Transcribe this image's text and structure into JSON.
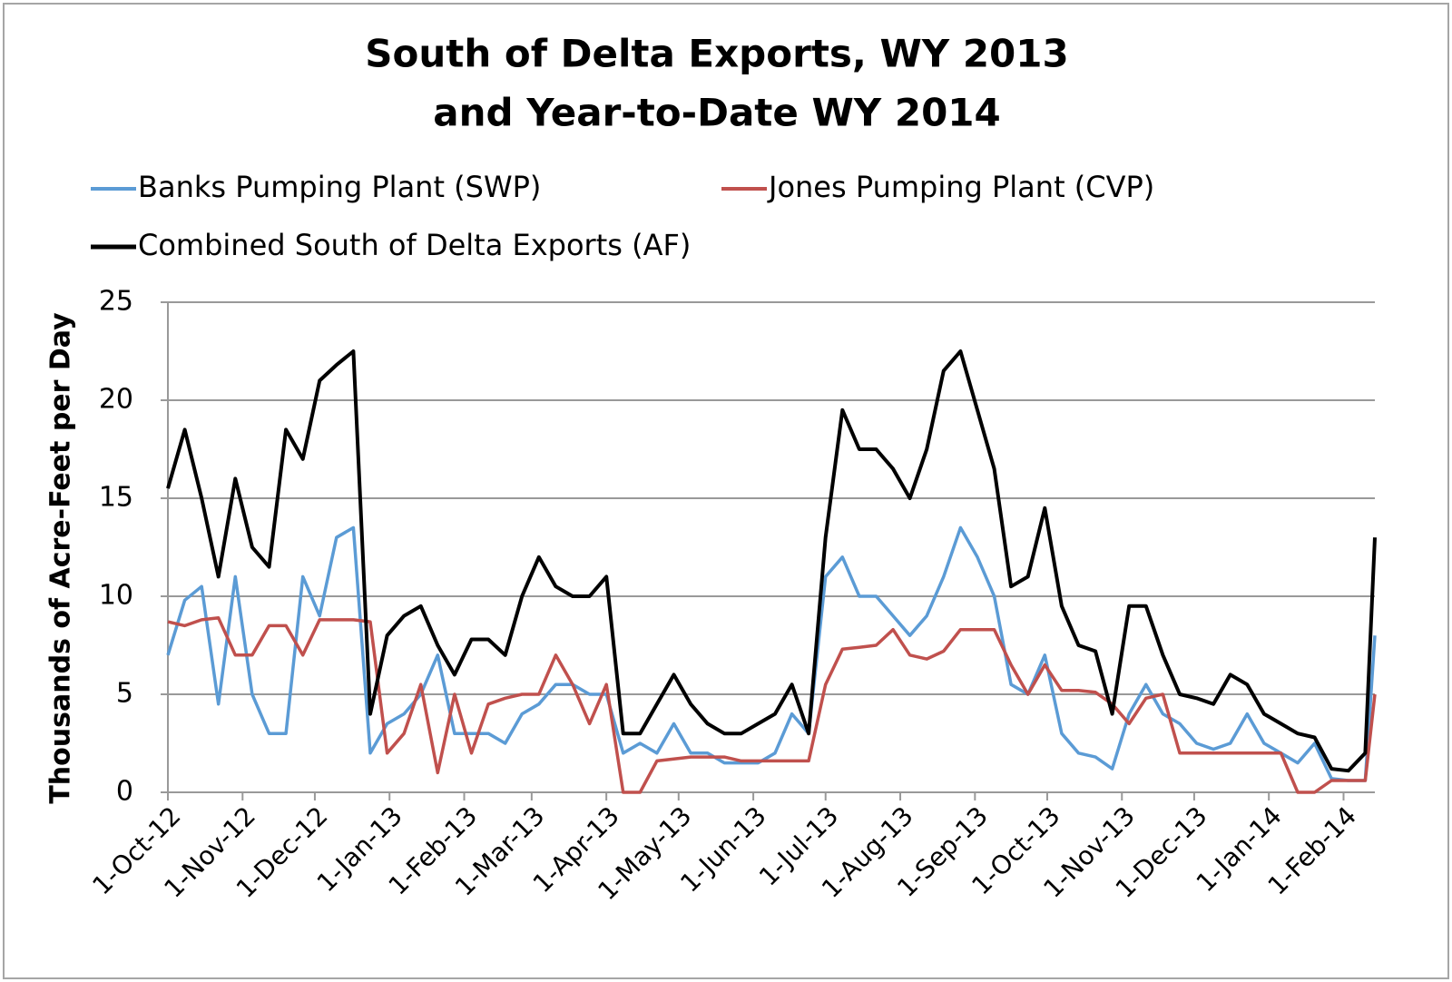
{
  "chart_data": {
    "type": "line",
    "title": [
      "South of Delta Exports, WY 2013",
      "and Year-to-Date WY 2014"
    ],
    "ylabel": "Thousands of Acre-Feet per Day",
    "x": [
      "2012-10-01",
      "2012-10-08",
      "2012-10-15",
      "2012-10-22",
      "2012-10-29",
      "2012-11-05",
      "2012-11-12",
      "2012-11-19",
      "2012-11-26",
      "2012-12-03",
      "2012-12-10",
      "2012-12-17",
      "2012-12-24",
      "2012-12-31",
      "2013-01-07",
      "2013-01-14",
      "2013-01-21",
      "2013-01-28",
      "2013-02-04",
      "2013-02-11",
      "2013-02-18",
      "2013-02-25",
      "2013-03-04",
      "2013-03-11",
      "2013-03-18",
      "2013-03-25",
      "2013-04-01",
      "2013-04-08",
      "2013-04-15",
      "2013-04-22",
      "2013-04-29",
      "2013-05-06",
      "2013-05-13",
      "2013-05-20",
      "2013-05-27",
      "2013-06-03",
      "2013-06-10",
      "2013-06-17",
      "2013-06-24",
      "2013-07-01",
      "2013-07-08",
      "2013-07-15",
      "2013-07-22",
      "2013-07-29",
      "2013-08-05",
      "2013-08-12",
      "2013-08-19",
      "2013-08-26",
      "2013-09-02",
      "2013-09-09",
      "2013-09-16",
      "2013-09-23",
      "2013-09-30",
      "2013-10-07",
      "2013-10-14",
      "2013-10-21",
      "2013-10-28",
      "2013-11-04",
      "2013-11-11",
      "2013-11-18",
      "2013-11-25",
      "2013-12-02",
      "2013-12-09",
      "2013-12-16",
      "2013-12-23",
      "2013-12-30",
      "2014-01-06",
      "2014-01-13",
      "2014-01-20",
      "2014-01-27",
      "2014-02-03",
      "2014-02-10",
      "2014-02-14"
    ],
    "series": [
      {
        "name": "Banks Pumping Plant (SWP)",
        "color": "#5b9bd5",
        "values": [
          7,
          9.8,
          10.5,
          4.5,
          11,
          5,
          3,
          3,
          11,
          9,
          13,
          13.5,
          2,
          3.5,
          4,
          5,
          7,
          3,
          3,
          3,
          2.5,
          4,
          4.5,
          5.5,
          5.5,
          5,
          5,
          2,
          2.5,
          2,
          3.5,
          2,
          2,
          1.5,
          1.5,
          1.5,
          2,
          4,
          3,
          11,
          12,
          10,
          10,
          9,
          8,
          9,
          11,
          13.5,
          12,
          10,
          5.5,
          5,
          7,
          3,
          2,
          1.8,
          1.2,
          4,
          5.5,
          4,
          3.5,
          2.5,
          2.2,
          2.5,
          4,
          2.5,
          2,
          1.5,
          2.5,
          0.7,
          0.6,
          0.6,
          8
        ]
      },
      {
        "name": "Jones Pumping Plant (CVP)",
        "color": "#c0504d",
        "values": [
          8.7,
          8.5,
          8.8,
          8.9,
          7,
          7,
          8.5,
          8.5,
          7,
          8.8,
          8.8,
          8.8,
          8.7,
          2,
          3,
          5.5,
          1,
          5,
          2,
          4.5,
          4.8,
          5,
          5,
          7,
          5.5,
          3.5,
          5.5,
          0,
          0,
          1.6,
          1.7,
          1.8,
          1.8,
          1.8,
          1.6,
          1.6,
          1.6,
          1.6,
          1.6,
          5.5,
          7.3,
          7.4,
          7.5,
          8.3,
          7,
          6.8,
          7.2,
          8.3,
          8.3,
          8.3,
          6.5,
          5,
          6.5,
          5.2,
          5.2,
          5.1,
          4.5,
          3.5,
          4.8,
          5,
          2,
          2,
          2,
          2,
          2,
          2,
          2,
          0,
          0,
          0.6,
          0.6,
          0.6,
          5
        ]
      },
      {
        "name": "Combined South of Delta Exports (AF)",
        "color": "#000000",
        "values": [
          15.5,
          18.5,
          15,
          11,
          16,
          12.5,
          11.5,
          18.5,
          17,
          21,
          21.8,
          22.5,
          4,
          8,
          9,
          9.5,
          7.5,
          6,
          7.8,
          7.8,
          7,
          10,
          12,
          10.5,
          10,
          10,
          11,
          3,
          3,
          4.5,
          6,
          4.5,
          3.5,
          3,
          3,
          3.5,
          4,
          5.5,
          3,
          13,
          19.5,
          17.5,
          17.5,
          16.5,
          15,
          17.5,
          21.5,
          22.5,
          19.5,
          16.5,
          10.5,
          11,
          14.5,
          9.5,
          7.5,
          7.2,
          4,
          9.5,
          9.5,
          7,
          5,
          4.8,
          4.5,
          6,
          5.5,
          4,
          3.5,
          3,
          2.8,
          1.2,
          1.1,
          2,
          13
        ]
      }
    ],
    "xlim": [
      "2012-10-01",
      "2014-02-14"
    ],
    "xticks": [
      {
        "value": "2012-10-01",
        "label": "1-Oct-12"
      },
      {
        "value": "2012-11-01",
        "label": "1-Nov-12"
      },
      {
        "value": "2012-12-01",
        "label": "1-Dec-12"
      },
      {
        "value": "2013-01-01",
        "label": "1-Jan-13"
      },
      {
        "value": "2013-02-01",
        "label": "1-Feb-13"
      },
      {
        "value": "2013-03-01",
        "label": "1-Mar-13"
      },
      {
        "value": "2013-04-01",
        "label": "1-Apr-13"
      },
      {
        "value": "2013-05-01",
        "label": "1-May-13"
      },
      {
        "value": "2013-06-01",
        "label": "1-Jun-13"
      },
      {
        "value": "2013-07-01",
        "label": "1-Jul-13"
      },
      {
        "value": "2013-08-01",
        "label": "1-Aug-13"
      },
      {
        "value": "2013-09-01",
        "label": "1-Sep-13"
      },
      {
        "value": "2013-10-01",
        "label": "1-Oct-13"
      },
      {
        "value": "2013-11-01",
        "label": "1-Nov-13"
      },
      {
        "value": "2013-12-01",
        "label": "1-Dec-13"
      },
      {
        "value": "2014-01-01",
        "label": "1-Jan-14"
      },
      {
        "value": "2014-02-01",
        "label": "1-Feb-14"
      }
    ],
    "ylim": [
      0,
      25
    ],
    "yticks": [
      0,
      5,
      10,
      15,
      20,
      25
    ],
    "grid": true
  }
}
